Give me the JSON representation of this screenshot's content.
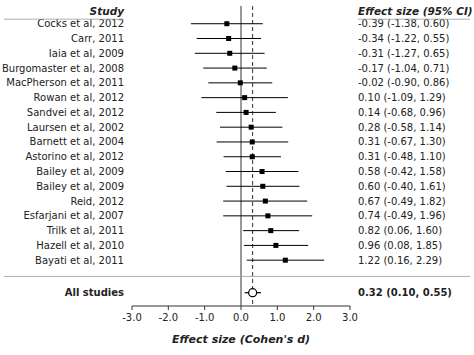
{
  "chart_data": {
    "type": "forest",
    "xlabel": "Effect size (Cohen's d)",
    "label_header": "Study",
    "effect_header": "Effect size (95% CI)",
    "categories": [
      "Cocks et al, 2012",
      "Carr, 2011",
      "Iaia et al, 2009",
      "Burgomaster et al, 2008",
      "MacPherson et al, 2011",
      "Rowan et al, 2012",
      "Sandvei et al, 2012",
      "Laursen et al, 2002",
      "Barnett et al, 2004",
      "Astorino et al, 2012",
      "Bailey et al, 2009",
      "Bailey et al, 2009",
      "Reid, 2012",
      "Esfarjani et al, 2007",
      "Trilk et al, 2011",
      "Hazell et al, 2010",
      "Bayati et al, 2011"
    ],
    "values": [
      -0.39,
      -0.34,
      -0.31,
      -0.17,
      -0.02,
      0.1,
      0.14,
      0.28,
      0.31,
      0.31,
      0.58,
      0.6,
      0.67,
      0.74,
      0.82,
      0.96,
      1.22
    ],
    "ci_low": [
      -1.38,
      -1.22,
      -1.27,
      -1.04,
      -0.9,
      -1.09,
      -0.68,
      -0.58,
      -0.67,
      -0.48,
      -0.42,
      -0.4,
      -0.49,
      -0.49,
      0.06,
      0.08,
      0.16
    ],
    "ci_high": [
      0.6,
      0.55,
      0.65,
      0.71,
      0.86,
      1.29,
      0.96,
      1.14,
      1.3,
      1.1,
      1.58,
      1.61,
      1.82,
      1.96,
      1.6,
      1.85,
      2.29
    ],
    "effect_labels": [
      "-0.39 (-1.38, 0.60)",
      "-0.34 (-1.22, 0.55)",
      "-0.31 (-1.27, 0.65)",
      "-0.17 (-1.04, 0.71)",
      "-0.02 (-0.90, 0.86)",
      "0.10 (-1.09, 1.29)",
      "0.14 (-0.68, 0.96)",
      "0.28 (-0.58, 1.14)",
      "0.31 (-0.67, 1.30)",
      "0.31 (-0.48, 1.10)",
      "0.58 (-0.42, 1.58)",
      "0.60 (-0.40, 1.61)",
      "0.67 (-0.49, 1.82)",
      "0.74 (-0.49, 1.96)",
      "0.82 (0.06, 1.60)",
      "0.96 (0.08, 1.85)",
      "1.22 (0.16, 2.29)"
    ],
    "marker": "square",
    "overall": {
      "label": "All studies",
      "value": 0.32,
      "ci_low": 0.1,
      "ci_high": 0.55,
      "value_label": "0.32 (0.10, 0.55)",
      "marker": "circle-open"
    },
    "reference_line": 0.0,
    "mean_line": 0.32,
    "color": "#000000",
    "xlim": [
      -3.0,
      3.0
    ],
    "xticks": [
      {
        "value": -3.0,
        "label": "-3.0"
      },
      {
        "value": -2.0,
        "label": "-2.0"
      },
      {
        "value": -1.0,
        "label": "-1.0"
      },
      {
        "value": 0.0,
        "label": "0.0"
      },
      {
        "value": 1.0,
        "label": "1.0"
      },
      {
        "value": 2.0,
        "label": "2.0"
      },
      {
        "value": 3.0,
        "label": "3.0"
      }
    ],
    "grid": false
  }
}
